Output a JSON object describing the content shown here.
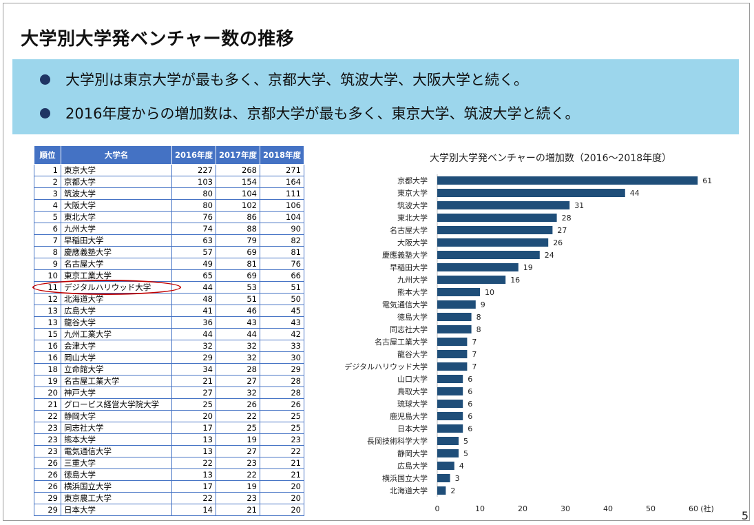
{
  "slide": {
    "title": "大学別大学発ベンチャー数の推移",
    "bullets": [
      "大学別は東京大学が最も多く、京都大学、筑波大学、大阪大学と続く。",
      "2016年度からの増加数は、京都大学が最も多く、東京大学、筑波大学と続く。"
    ],
    "page_number": "5"
  },
  "table": {
    "headers": [
      "順位",
      "大学名",
      "2016年度",
      "2017年度",
      "2018年度"
    ],
    "rows": [
      [
        "1",
        "東京大学",
        "227",
        "268",
        "271"
      ],
      [
        "2",
        "京都大学",
        "103",
        "154",
        "164"
      ],
      [
        "3",
        "筑波大学",
        "80",
        "104",
        "111"
      ],
      [
        "4",
        "大阪大学",
        "80",
        "102",
        "106"
      ],
      [
        "5",
        "東北大学",
        "76",
        "86",
        "104"
      ],
      [
        "6",
        "九州大学",
        "74",
        "88",
        "90"
      ],
      [
        "7",
        "早稲田大学",
        "63",
        "79",
        "82"
      ],
      [
        "8",
        "慶應義塾大学",
        "57",
        "69",
        "81"
      ],
      [
        "9",
        "名古屋大学",
        "49",
        "81",
        "76"
      ],
      [
        "10",
        "東京工業大学",
        "65",
        "69",
        "66"
      ],
      [
        "11",
        "デジタルハリウッド大学",
        "44",
        "53",
        "51"
      ],
      [
        "12",
        "北海道大学",
        "48",
        "51",
        "50"
      ],
      [
        "13",
        "広島大学",
        "41",
        "46",
        "45"
      ],
      [
        "13",
        "龍谷大学",
        "36",
        "43",
        "43"
      ],
      [
        "15",
        "九州工業大学",
        "44",
        "44",
        "42"
      ],
      [
        "16",
        "会津大学",
        "32",
        "32",
        "33"
      ],
      [
        "16",
        "岡山大学",
        "29",
        "32",
        "30"
      ],
      [
        "18",
        "立命館大学",
        "34",
        "28",
        "29"
      ],
      [
        "19",
        "名古屋工業大学",
        "21",
        "27",
        "28"
      ],
      [
        "20",
        "神戸大学",
        "27",
        "32",
        "28"
      ],
      [
        "21",
        "グロービス経営大学院大学",
        "25",
        "26",
        "26"
      ],
      [
        "22",
        "静岡大学",
        "20",
        "22",
        "25"
      ],
      [
        "23",
        "同志社大学",
        "17",
        "25",
        "25"
      ],
      [
        "23",
        "熊本大学",
        "13",
        "19",
        "23"
      ],
      [
        "23",
        "電気通信大学",
        "13",
        "27",
        "22"
      ],
      [
        "26",
        "三重大学",
        "22",
        "23",
        "21"
      ],
      [
        "26",
        "徳島大学",
        "13",
        "22",
        "21"
      ],
      [
        "26",
        "横浜国立大学",
        "17",
        "19",
        "20"
      ],
      [
        "29",
        "東京農工大学",
        "22",
        "23",
        "20"
      ],
      [
        "29",
        "日本大学",
        "14",
        "21",
        "20"
      ]
    ]
  },
  "chart_data": {
    "type": "bar",
    "orientation": "horizontal",
    "title": "大学別大学発ベンチャーの増加数（2016～2018年度）",
    "xlabel": "",
    "ylabel": "",
    "x_unit": "(社)",
    "xlim": [
      0,
      65
    ],
    "x_ticks": [
      0,
      10,
      20,
      30,
      40,
      50,
      60
    ],
    "color": "#1f4e79",
    "categories": [
      "京都大学",
      "東京大学",
      "筑波大学",
      "東北大学",
      "名古屋大学",
      "大阪大学",
      "慶應義塾大学",
      "早稲田大学",
      "九州大学",
      "熊本大学",
      "電気通信大学",
      "徳島大学",
      "同志社大学",
      "名古屋工業大学",
      "龍谷大学",
      "デジタルハリウッド大学",
      "山口大学",
      "鳥取大学",
      "琉球大学",
      "鹿児島大学",
      "日本大学",
      "長岡技術科学大学",
      "静岡大学",
      "広島大学",
      "横浜国立大学",
      "北海道大学"
    ],
    "values": [
      61,
      44,
      31,
      28,
      27,
      26,
      24,
      19,
      16,
      10,
      9,
      8,
      8,
      7,
      7,
      7,
      6,
      6,
      6,
      6,
      6,
      5,
      5,
      4,
      3,
      2
    ]
  }
}
